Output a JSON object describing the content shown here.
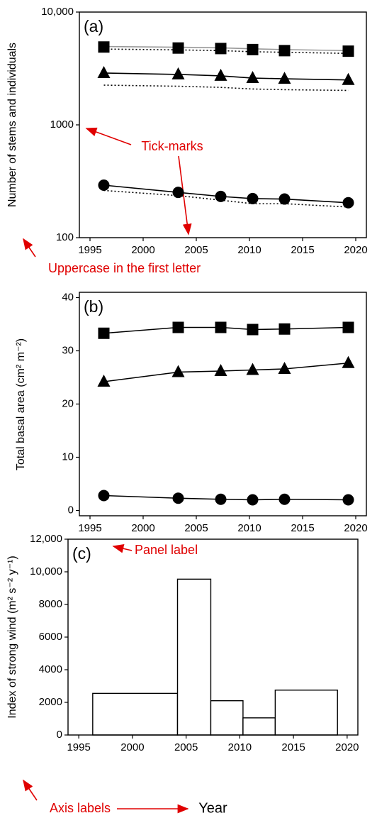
{
  "chart_data": [
    {
      "type": "line",
      "panel_label": "(a)",
      "ylabel": "Number of stems and individuals",
      "x": [
        1996.3,
        2003.3,
        2007.3,
        2010.3,
        2013.3,
        2019.3
      ],
      "series": [
        {
          "color": "#999999",
          "marker": "none",
          "linestyle": "solid",
          "values": [
            4950,
            4880,
            4820,
            4720,
            4650,
            4550
          ]
        },
        {
          "color": "#000000",
          "marker": "none",
          "linestyle": "dotted",
          "values": [
            4700,
            4620,
            4550,
            4450,
            4400,
            4300
          ]
        },
        {
          "color": "#000000",
          "marker": "square",
          "linestyle": "none",
          "values": [
            4900,
            4800,
            4750,
            4650,
            4550,
            4500
          ]
        },
        {
          "color": "#000000",
          "marker": "none",
          "linestyle": "dotted",
          "values": [
            2250,
            2200,
            2150,
            2080,
            2050,
            2020
          ]
        },
        {
          "color": "#000000",
          "marker": "triangle",
          "linestyle": "solid",
          "values": [
            2880,
            2800,
            2720,
            2600,
            2560,
            2500
          ]
        },
        {
          "color": "#000000",
          "marker": "none",
          "linestyle": "dotted",
          "values": [
            262,
            236,
            215,
            200,
            200,
            187
          ]
        },
        {
          "color": "#000000",
          "marker": "circle",
          "linestyle": "solid",
          "values": [
            292,
            252,
            232,
            222,
            220,
            204
          ]
        }
      ],
      "xlim": [
        1994,
        2021
      ],
      "xticks": [
        1995,
        2000,
        2005,
        2010,
        2015,
        2020
      ],
      "ylim": [
        100,
        10000
      ],
      "yticks": [
        100,
        1000,
        {
          "value": 10000,
          "label": "10,000"
        }
      ],
      "yscale": "log"
    },
    {
      "type": "line",
      "panel_label": "(b)",
      "ylabel": "Total basal area (cm² m⁻²)",
      "x": [
        1996.3,
        2003.3,
        2007.3,
        2010.3,
        2013.3,
        2019.3
      ],
      "series": [
        {
          "color": "#000000",
          "marker": "square",
          "linestyle": "solid",
          "values": [
            33.3,
            34.4,
            34.4,
            34.0,
            34.1,
            34.4
          ]
        },
        {
          "color": "#000000",
          "marker": "triangle",
          "linestyle": "solid",
          "values": [
            24.2,
            26.0,
            26.2,
            26.4,
            26.6,
            27.7
          ]
        },
        {
          "color": "#000000",
          "marker": "circle",
          "linestyle": "solid",
          "values": [
            2.8,
            2.3,
            2.1,
            2.0,
            2.1,
            2.0
          ]
        }
      ],
      "xlim": [
        1994,
        2021
      ],
      "xticks": [
        1995,
        2000,
        2005,
        2010,
        2015,
        2020
      ],
      "ylim": [
        -1,
        41
      ],
      "yticks": [
        0,
        10,
        20,
        30,
        40
      ]
    },
    {
      "type": "histogram",
      "panel_label": "(c)",
      "ylabel": "Index of strong wind (m² s⁻² y⁻¹)",
      "xlabel": "Year",
      "bins": [
        1996.3,
        2004.2,
        2007.3,
        2010.3,
        2013.3,
        2019.1
      ],
      "values": [
        2550,
        9550,
        2100,
        1050,
        2750
      ],
      "color": "#ffffff",
      "edgecolor": "#000000",
      "xlim": [
        1994,
        2021
      ],
      "xticks": [
        1995,
        2000,
        2005,
        2010,
        2015,
        2020
      ],
      "ylim": [
        0,
        12000
      ],
      "yticks": [
        0,
        2000,
        4000,
        6000,
        8000,
        {
          "value": 10000,
          "label": "10,000"
        },
        {
          "value": 12000,
          "label": "12,000"
        }
      ]
    }
  ],
  "annotations": [
    {
      "text": "Tick-marks",
      "color": "#e00000"
    },
    {
      "text": "Uppercase in the first letter",
      "color": "#e00000"
    },
    {
      "text": "Panel label",
      "color": "#e00000"
    },
    {
      "text": "Axis labels",
      "color": "#e00000"
    }
  ]
}
